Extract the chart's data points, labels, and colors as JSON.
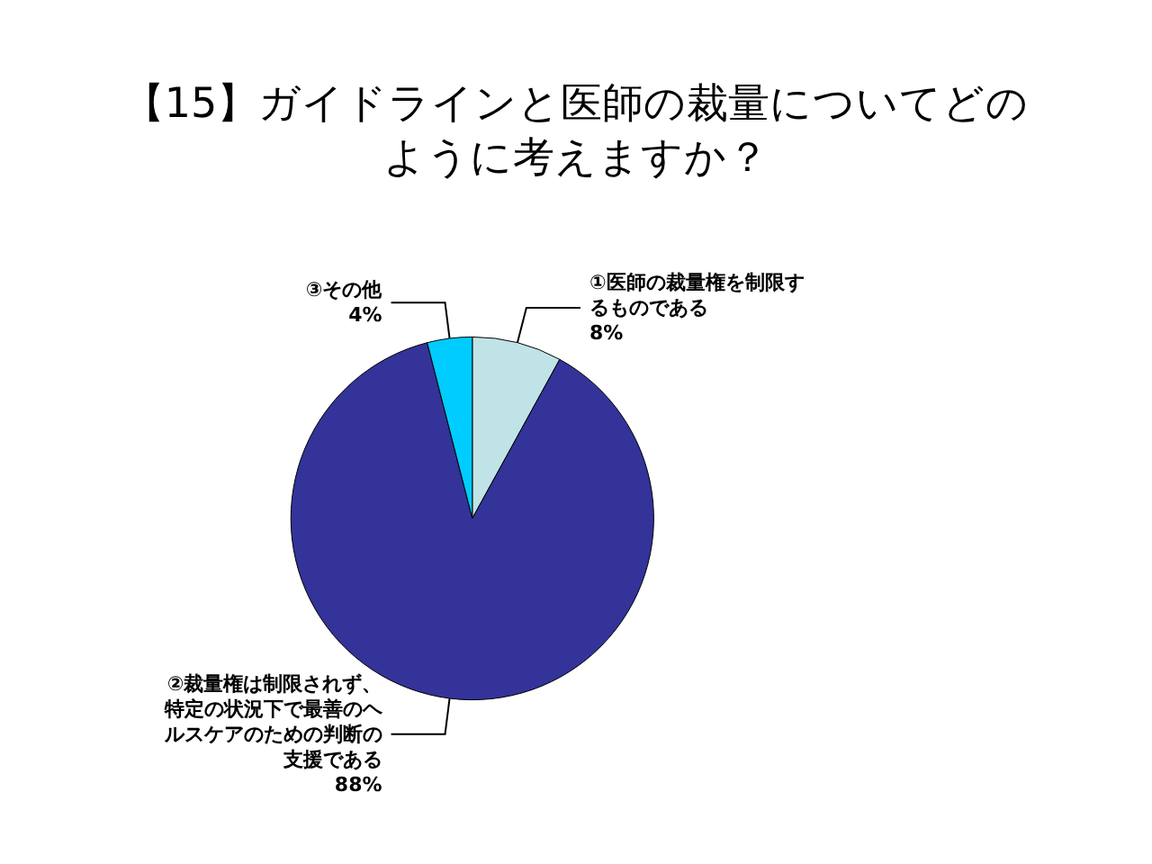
{
  "chart_data": {
    "type": "pie",
    "title": "【15】ガイドラインと医師の裁量についてどのように考えますか？",
    "categories": [
      "①医師の裁量権を制限するものである",
      "②裁量権は制限されず、特定の状況下で最善のヘルスケアのための判断の支援である",
      "③その他"
    ],
    "values": [
      8,
      88,
      4
    ],
    "colors": [
      "#bfe3e6",
      "#333399",
      "#00ccff"
    ],
    "value_labels": [
      "8%",
      "88%",
      "4%"
    ],
    "legend": false
  }
}
